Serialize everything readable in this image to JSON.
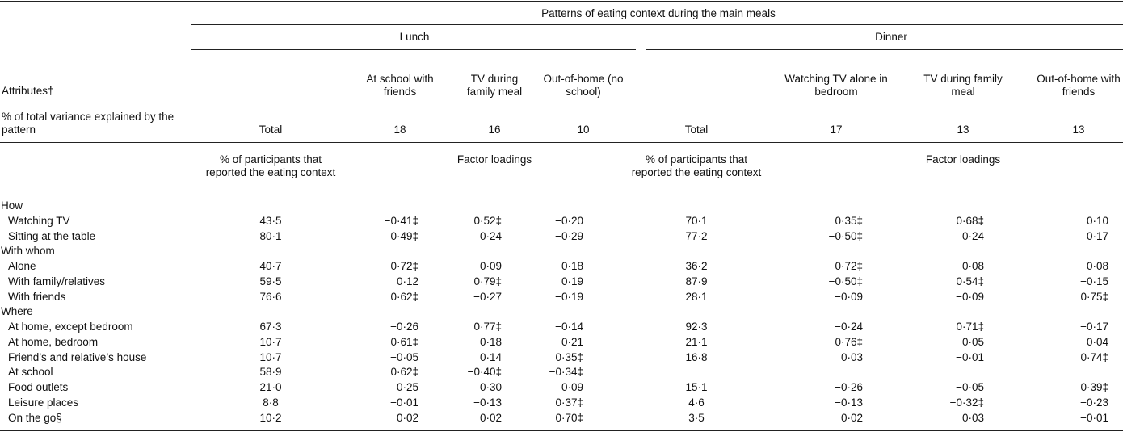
{
  "header": {
    "title": "Patterns of eating context during the main meals",
    "lunch": "Lunch",
    "dinner": "Dinner"
  },
  "columns": {
    "attributes": "Attributes†",
    "lunch": [
      "At school with friends",
      "TV during family meal",
      "Out-of-home (no school)"
    ],
    "dinner": [
      "Watching TV alone in bedroom",
      "TV during family meal",
      "Out-of-home with friends"
    ]
  },
  "variance": {
    "label": "% of total variance explained by the pattern",
    "values": [
      "Total",
      "18",
      "16",
      "10",
      "Total",
      "17",
      "13",
      "13"
    ]
  },
  "subheader": {
    "lunch_total": "% of participants that reported the eating context",
    "lunch_loadings": "Factor loadings",
    "dinner_total": "% of participants that reported the eating context",
    "dinner_loadings": "Factor loadings"
  },
  "rows": [
    {
      "label": "How"
    },
    {
      "label": "Watching TV",
      "values": [
        "43·5",
        "−0·41‡",
        "0·52‡",
        "−0·20",
        "70·1",
        "0·35‡",
        "0·68‡",
        "0·10"
      ]
    },
    {
      "label": "Sitting at the table",
      "values": [
        "80·1",
        "0·49‡",
        "0·24",
        "−0·29",
        "77·2",
        "−0·50‡",
        "0·24",
        "0·17"
      ]
    },
    {
      "label": "With whom"
    },
    {
      "label": "Alone",
      "values": [
        "40·7",
        "−0·72‡",
        "0·09",
        "−0·18",
        "36·2",
        "0·72‡",
        "0·08",
        "−0·08"
      ]
    },
    {
      "label": "With family/relatives",
      "values": [
        "59·5",
        "0·12",
        "0·79‡",
        "0·19",
        "87·9",
        "−0·50‡",
        "0·54‡",
        "−0·15"
      ]
    },
    {
      "label": "With friends",
      "values": [
        "76·6",
        "0·62‡",
        "−0·27",
        "−0·19",
        "28·1",
        "−0·09",
        "−0·09",
        "0·75‡"
      ]
    },
    {
      "label": "Where"
    },
    {
      "label": "At home, except bedroom",
      "values": [
        "67·3",
        "−0·26",
        "0·77‡",
        "−0·14",
        "92·3",
        "−0·24",
        "0·71‡",
        "−0·17"
      ]
    },
    {
      "label": "At home, bedroom",
      "values": [
        "10·7",
        "−0·61‡",
        "−0·18",
        "−0·21",
        "21·1",
        "0·76‡",
        "−0·05",
        "−0·04"
      ]
    },
    {
      "label": "Friend’s and relative’s house",
      "values": [
        "10·7",
        "−0·05",
        "0·14",
        "0·35‡",
        "16·8",
        "0·03",
        "−0·01",
        "0·74‡"
      ]
    },
    {
      "label": "At school",
      "values": [
        "58·9",
        "0·62‡",
        "−0·40‡",
        "−0·34‡",
        null,
        null,
        null,
        null
      ]
    },
    {
      "label": "Food outlets",
      "values": [
        "21·0",
        "0·25",
        "0·30",
        "0·09",
        "15·1",
        "−0·26",
        "−0·05",
        "0·39‡"
      ]
    },
    {
      "label": "Leisure places",
      "values": [
        "8·8",
        "−0·01",
        "−0·13",
        "0·37‡",
        "4·6",
        "−0·13",
        "−0·32‡",
        "−0·23"
      ]
    },
    {
      "label": "On the go§",
      "values": [
        "10·2",
        "0·02",
        "0·02",
        "0·70‡",
        "3·5",
        "0·02",
        "0·03",
        "−0·01"
      ]
    }
  ]
}
